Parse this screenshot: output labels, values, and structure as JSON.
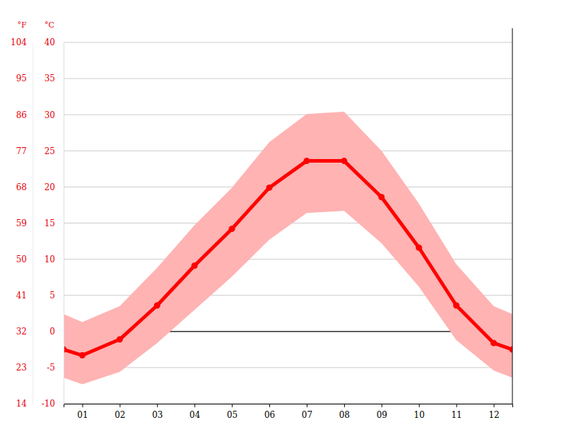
{
  "chart_data": {
    "type": "line",
    "x": [
      0.5,
      1,
      2,
      3,
      4,
      5,
      6,
      7,
      8,
      9,
      10,
      11,
      12,
      12.5
    ],
    "xlim": [
      0.5,
      12.5
    ],
    "xticks": [
      {
        "value": 1,
        "label": "01"
      },
      {
        "value": 2,
        "label": "02"
      },
      {
        "value": 3,
        "label": "03"
      },
      {
        "value": 4,
        "label": "04"
      },
      {
        "value": 5,
        "label": "05"
      },
      {
        "value": 6,
        "label": "06"
      },
      {
        "value": 7,
        "label": "07"
      },
      {
        "value": 8,
        "label": "08"
      },
      {
        "value": 9,
        "label": "09"
      },
      {
        "value": 10,
        "label": "10"
      },
      {
        "value": 11,
        "label": "11"
      },
      {
        "value": 12,
        "label": "12"
      }
    ],
    "ylabel": "°C",
    "ylim": [
      -10,
      40
    ],
    "yticks": [
      -10,
      -5,
      0,
      5,
      10,
      15,
      20,
      25,
      30,
      35,
      40
    ],
    "y2label": "°F",
    "y2lim": [
      14,
      104
    ],
    "y2ticks": [
      14,
      23,
      32,
      41,
      50,
      59,
      68,
      77,
      86,
      95,
      104
    ],
    "grid": true,
    "series": [
      {
        "type": "area",
        "color": "#ffb3b3",
        "low": [
          -6.4,
          -7.3,
          -5.6,
          -1.6,
          3.0,
          7.6,
          12.7,
          16.4,
          16.7,
          12.2,
          6.2,
          -1.2,
          -5.4,
          -6.4
        ],
        "high": [
          2.4,
          1.3,
          3.5,
          8.8,
          14.7,
          19.9,
          26.2,
          30.1,
          30.4,
          25.0,
          17.7,
          9.3,
          3.5,
          2.4
        ]
      },
      {
        "type": "line",
        "color": "#ff0000",
        "marker": "circle",
        "values": [
          -2.5,
          -3.3,
          -1.1,
          3.6,
          9.1,
          14.2,
          19.9,
          23.6,
          23.6,
          18.6,
          11.6,
          3.6,
          -1.6,
          -2.5
        ]
      }
    ]
  }
}
